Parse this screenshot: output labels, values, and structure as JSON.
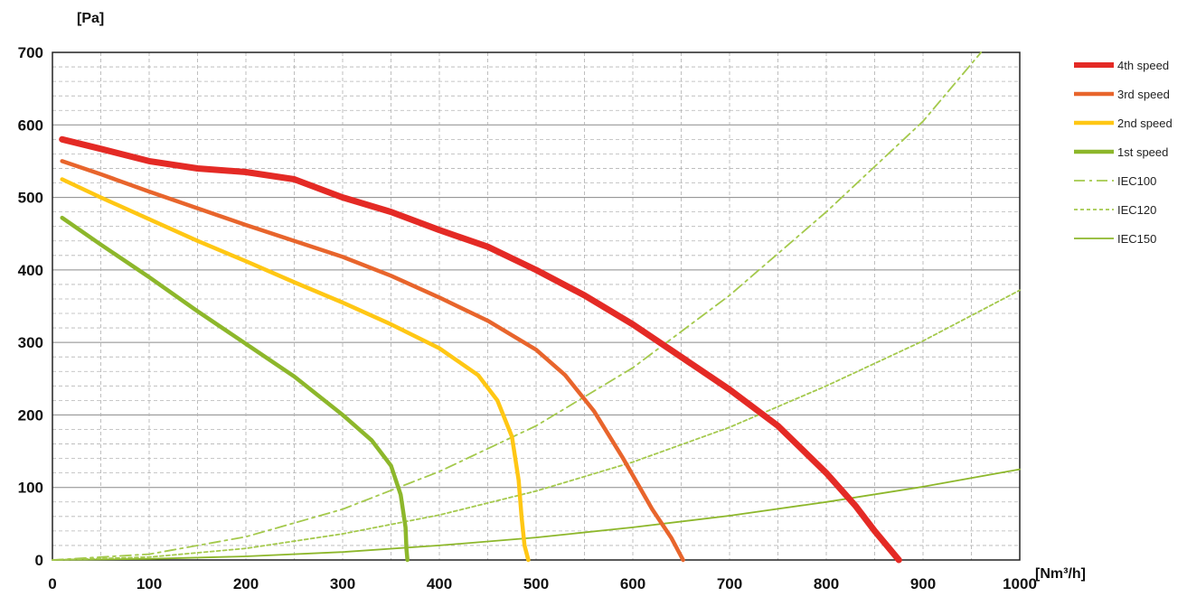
{
  "chart_data": {
    "type": "line",
    "title": "",
    "xlabel": "[Nm³/h]",
    "ylabel": "[Pa]",
    "xlim": [
      0,
      1000
    ],
    "ylim": [
      0,
      700
    ],
    "x_ticks": [
      "0",
      "100",
      "200",
      "300",
      "400",
      "500",
      "600",
      "700",
      "800",
      "900",
      "1000"
    ],
    "y_ticks": [
      "0",
      "100",
      "200",
      "300",
      "400",
      "500",
      "600",
      "700"
    ],
    "grid": true,
    "legend_position": "right",
    "series": [
      {
        "name": "4th speed",
        "color": "#e42a25",
        "style": "solid-thick",
        "x": [
          10,
          50,
          100,
          150,
          200,
          250,
          300,
          350,
          400,
          450,
          500,
          550,
          600,
          650,
          700,
          750,
          800,
          830,
          850,
          875
        ],
        "y": [
          580,
          567,
          550,
          540,
          535,
          525,
          500,
          480,
          455,
          432,
          400,
          365,
          325,
          280,
          235,
          185,
          120,
          75,
          40,
          0
        ]
      },
      {
        "name": "3rd speed",
        "color": "#e8652c",
        "style": "solid",
        "x": [
          10,
          50,
          100,
          150,
          200,
          250,
          300,
          350,
          400,
          450,
          500,
          530,
          560,
          590,
          620,
          640,
          652
        ],
        "y": [
          550,
          532,
          508,
          485,
          462,
          440,
          418,
          392,
          362,
          330,
          290,
          255,
          205,
          140,
          70,
          30,
          0
        ]
      },
      {
        "name": "2nd speed",
        "color": "#ffc714",
        "style": "solid",
        "x": [
          10,
          50,
          100,
          150,
          200,
          250,
          300,
          350,
          400,
          440,
          460,
          475,
          482,
          485,
          488,
          492
        ],
        "y": [
          525,
          500,
          470,
          440,
          412,
          383,
          355,
          325,
          292,
          255,
          220,
          170,
          110,
          60,
          20,
          0
        ]
      },
      {
        "name": "1st speed",
        "color": "#8db72b",
        "style": "solid",
        "x": [
          10,
          50,
          100,
          150,
          200,
          250,
          300,
          330,
          350,
          360,
          365,
          366,
          367
        ],
        "y": [
          472,
          435,
          390,
          343,
          298,
          253,
          200,
          165,
          130,
          90,
          45,
          15,
          0
        ]
      },
      {
        "name": "IEC100",
        "color": "#a4c94c",
        "style": "dash-dot",
        "x": [
          0,
          100,
          200,
          300,
          400,
          500,
          600,
          700,
          800,
          900,
          960
        ],
        "y": [
          0,
          8,
          32,
          70,
          122,
          185,
          265,
          365,
          480,
          605,
          700
        ]
      },
      {
        "name": "IEC120",
        "color": "#a4c94c",
        "style": "dotted",
        "x": [
          0,
          100,
          200,
          300,
          400,
          500,
          600,
          700,
          800,
          900,
          1000
        ],
        "y": [
          0,
          4,
          16,
          36,
          62,
          95,
          135,
          183,
          240,
          302,
          372
        ]
      },
      {
        "name": "IEC150",
        "color": "#8db72b",
        "style": "solid-thin",
        "x": [
          0,
          100,
          200,
          300,
          400,
          500,
          600,
          700,
          800,
          900,
          1000
        ],
        "y": [
          0,
          1.5,
          5,
          11,
          20,
          31,
          45,
          61,
          80,
          101,
          125
        ]
      }
    ]
  }
}
